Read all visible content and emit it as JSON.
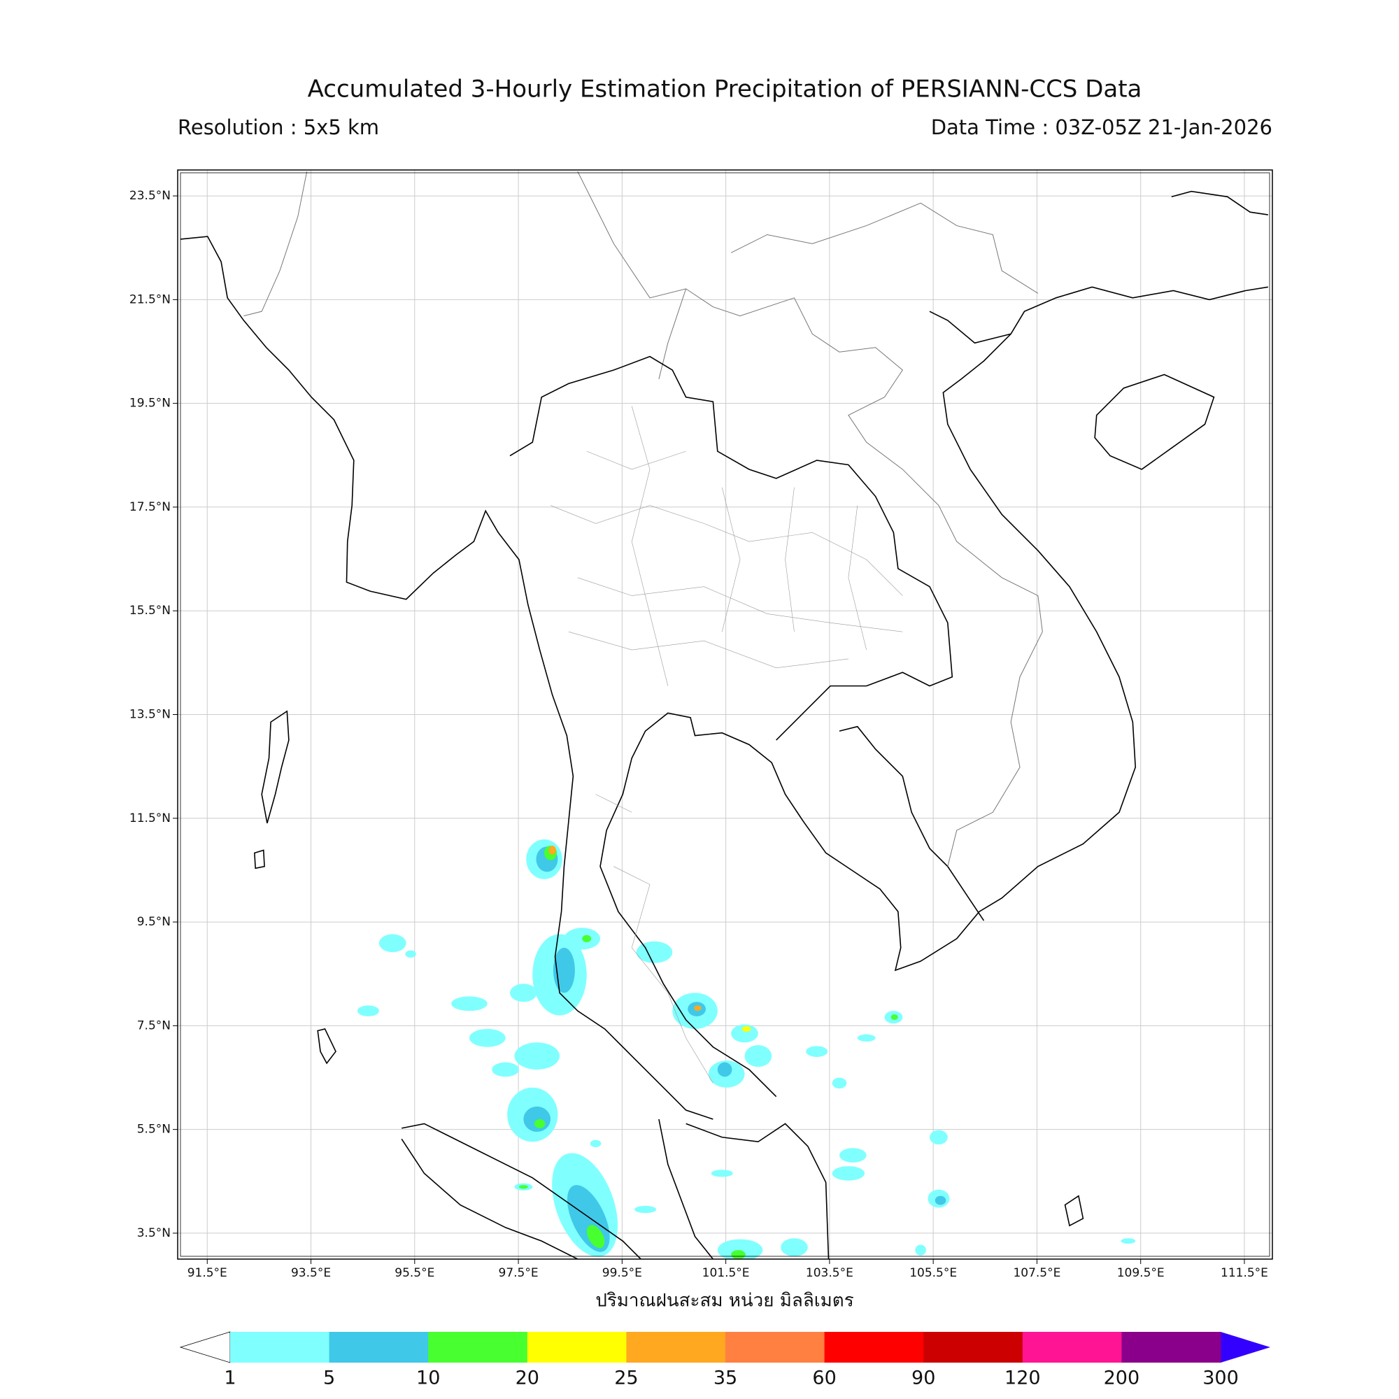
{
  "header": {
    "title": "Accumulated 3-Hourly Estimation Precipitation of PERSIANN-CCS Data",
    "resolution": "Resolution : 5x5 km",
    "data_time": "Data Time : 03Z-05Z 21-Jan-2026"
  },
  "map": {
    "lonlim": [
      90.93,
      112.04
    ],
    "latlim": [
      3.0,
      24.0
    ],
    "lon_ticks": [
      {
        "value": 91.5,
        "label": "91.5°E"
      },
      {
        "value": 93.5,
        "label": "93.5°E"
      },
      {
        "value": 95.5,
        "label": "95.5°E"
      },
      {
        "value": 97.5,
        "label": "97.5°E"
      },
      {
        "value": 99.5,
        "label": "99.5°E"
      },
      {
        "value": 101.5,
        "label": "101.5°E"
      },
      {
        "value": 103.5,
        "label": "103.5°E"
      },
      {
        "value": 105.5,
        "label": "105.5°E"
      },
      {
        "value": 107.5,
        "label": "107.5°E"
      },
      {
        "value": 109.5,
        "label": "109.5°E"
      },
      {
        "value": 111.5,
        "label": "111.5°E"
      }
    ],
    "lat_ticks": [
      {
        "value": 23.5,
        "label": "23.5°N"
      },
      {
        "value": 21.5,
        "label": "21.5°N"
      },
      {
        "value": 19.5,
        "label": "19.5°N"
      },
      {
        "value": 17.5,
        "label": "17.5°N"
      },
      {
        "value": 15.5,
        "label": "15.5°N"
      },
      {
        "value": 13.5,
        "label": "13.5°N"
      },
      {
        "value": 11.5,
        "label": "11.5°N"
      },
      {
        "value": 9.5,
        "label": "9.5°N"
      },
      {
        "value": 7.5,
        "label": "7.5°N"
      },
      {
        "value": 5.5,
        "label": "5.5°N"
      },
      {
        "value": 3.5,
        "label": "3.5°N"
      }
    ],
    "grid": true,
    "xlabel": "ปริมาณฝนสะสม หน่วย มิลลิเมตร"
  },
  "colorbar": {
    "levels": [
      1,
      5,
      10,
      20,
      25,
      35,
      60,
      90,
      120,
      200,
      300
    ],
    "colors": [
      "#80ffff",
      "#40c8e8",
      "#48ff30",
      "#ffff00",
      "#ffa820",
      "#ff8040",
      "#ff0000",
      "#cc0000",
      "#ff1493",
      "#8b008b"
    ],
    "under_color": "#ffffff",
    "over_color": "#3300ff"
  }
}
